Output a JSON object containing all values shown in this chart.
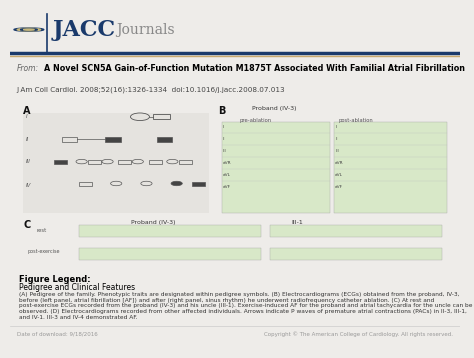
{
  "bg_color": "#eeece9",
  "header_bg": "#eeece9",
  "separator_dark": "#1a3a6b",
  "separator_gold": "#c8a96e",
  "from_label": "From:",
  "title_bold": "A Novel SCN5A Gain-of-Function Mutation M1875T Associated With Familial Atrial Fibrillation",
  "journal_ref": "J Am Coll Cardiol. 2008;52(16):1326-1334  doi:10.1016/j.jacc.2008.07.013",
  "figure_legend_title": "Figure Legend:",
  "legend_subtitle": "Pedigree and Clinical Features",
  "legend_text": "(A) Pedigree of the family. Phenotypic traits are designated within pedigree symbols. (B) Electrocardiograms (ECGs) obtained from the proband, IV-3, before (left panel, atrial fibrillation [AF]) and after (right panel, sinus rhythm) he underwent radiofrequency catheter ablation. (C) At rest and post-exercise ECGs recorded from the proband (IV-3) and his uncle (III-1). Exercise-induced AF for the proband and atrial tachycardia for the uncle can be observed. (D) Electrocardiograms recorded from other affected individuals. Arrows indicate P waves of premature atrial contractions (PACs) in II-3, III-1, and IV-1. III-3 and IV-4 demonstrated AF.",
  "footer_left": "Date of download: 9/18/2016",
  "footer_right": "Copyright © The American College of Cardiology. All rights reserved.",
  "footer_color": "#999999",
  "jacc_color": "#1a3a6b",
  "journals_color": "#888888",
  "from_color": "#666666",
  "title_color": "#000000",
  "ref_color": "#444444",
  "panel_label_color": "#111111",
  "ecg_bg": "#d8e8c8",
  "pedigree_bg": "#e5e3df",
  "content_bg": "#ffffff"
}
